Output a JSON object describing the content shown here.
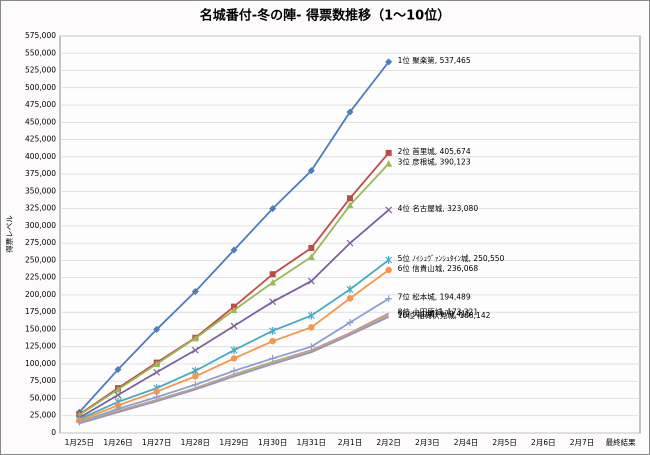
{
  "chart_data": {
    "type": "line",
    "title": "名城番付-冬の陣- 得票数推移（1～10位）",
    "y_label": "得票レベル",
    "categories": [
      "1月25日",
      "1月26日",
      "1月27日",
      "1月28日",
      "1月29日",
      "1月30日",
      "1月31日",
      "2月1日",
      "2月2日",
      "2月3日",
      "2月4日",
      "2月5日",
      "2月6日",
      "2月7日",
      "最終結果"
    ],
    "ylim": [
      0,
      575000
    ],
    "yticks": [
      0,
      {
        "value": 25000,
        "label": "25,000"
      },
      {
        "value": 50000,
        "label": "50,000"
      },
      {
        "value": 75000,
        "label": "75,000"
      },
      {
        "value": 100000,
        "label": "100,000"
      },
      {
        "value": 125000,
        "label": "125,000"
      },
      {
        "value": 150000,
        "label": "150,000"
      },
      {
        "value": 175000,
        "label": "175,000"
      },
      {
        "value": 200000,
        "label": "200,000"
      },
      {
        "value": 225000,
        "label": "225,000"
      },
      {
        "value": 250000,
        "label": "250,000"
      },
      {
        "value": 275000,
        "label": "275,000"
      },
      {
        "value": 300000,
        "label": "300,000"
      },
      {
        "value": 325000,
        "label": "325,000"
      },
      {
        "value": 350000,
        "label": "350,000"
      },
      {
        "value": 375000,
        "label": "375,000"
      },
      {
        "value": 400000,
        "label": "400,000"
      },
      {
        "value": 425000,
        "label": "425,000"
      },
      {
        "value": 450000,
        "label": "450,000"
      },
      {
        "value": 475000,
        "label": "475,000"
      },
      {
        "value": 500000,
        "label": "500,000"
      },
      {
        "value": 525000,
        "label": "525,000"
      },
      {
        "value": 550000,
        "label": "550,000"
      },
      {
        "value": 575000,
        "label": "575,000"
      }
    ],
    "grid": true,
    "series": [
      {
        "name": "1位 聚楽第, 537,465",
        "color": "#4a7ebb",
        "marker": "diamond",
        "values": [
          30000,
          92000,
          150000,
          205000,
          265000,
          325000,
          380000,
          465000,
          537465,
          null,
          null,
          null,
          null,
          null,
          null
        ]
      },
      {
        "name": "2位 首里城, 405,674",
        "color": "#be4b48",
        "marker": "square",
        "values": [
          27000,
          65000,
          102000,
          138000,
          183000,
          230000,
          268000,
          340000,
          405674,
          null,
          null,
          null,
          null,
          null,
          null
        ]
      },
      {
        "name": "3位 彦根城, 390,123",
        "color": "#98b954",
        "marker": "triangle",
        "values": [
          26000,
          63000,
          100000,
          137000,
          178000,
          218000,
          255000,
          330000,
          390123,
          null,
          null,
          null,
          null,
          null,
          null
        ]
      },
      {
        "name": "4位 名古屋城, 323,080",
        "color": "#7d60a0",
        "marker": "x",
        "values": [
          22000,
          55000,
          88000,
          120000,
          155000,
          190000,
          220000,
          275000,
          323080,
          null,
          null,
          null,
          null,
          null,
          null
        ]
      },
      {
        "name": "5位 ﾉｲｼｭｳﾞｧﾝｼｭﾀｲﾝ城, 250,550",
        "color": "#46aac5",
        "marker": "star",
        "values": [
          20000,
          45000,
          65000,
          90000,
          120000,
          148000,
          170000,
          208000,
          250550,
          null,
          null,
          null,
          null,
          null,
          null
        ]
      },
      {
        "name": "6位 信貴山城, 236,068",
        "color": "#f79646",
        "marker": "circle",
        "values": [
          18000,
          40000,
          60000,
          82000,
          108000,
          133000,
          153000,
          195000,
          236068,
          null,
          null,
          null,
          null,
          null,
          null
        ]
      },
      {
        "name": "7位 松本城, 194,489",
        "color": "#8c9fd0",
        "marker": "plus",
        "values": [
          16000,
          35000,
          52000,
          70000,
          90000,
          108000,
          125000,
          160000,
          194489,
          null,
          null,
          null,
          null,
          null,
          null
        ]
      },
      {
        "name": "8位 小田原城, 173,321",
        "color": "#d19392",
        "marker": "none",
        "values": [
          15000,
          32000,
          48000,
          65000,
          85000,
          103000,
          120000,
          145000,
          173321,
          null,
          null,
          null,
          null,
          null,
          null
        ]
      },
      {
        "name": "9位 犬山城, 170,415",
        "color": "#a6bc7a",
        "marker": "none",
        "values": [
          15000,
          31000,
          47000,
          64000,
          84000,
          102000,
          118000,
          143000,
          170415,
          null,
          null,
          null,
          null,
          null,
          null
        ]
      },
      {
        "name": "10位 稲荷伏見城, 168,142",
        "color": "#a292bb",
        "marker": "none",
        "values": [
          14000,
          30000,
          46000,
          63000,
          82000,
          100000,
          117000,
          142000,
          168142,
          null,
          null,
          null,
          null,
          null,
          null
        ]
      }
    ]
  }
}
